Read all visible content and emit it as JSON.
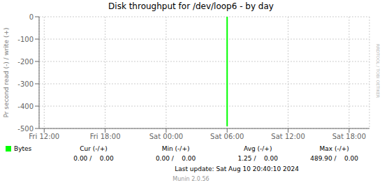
{
  "chart_data": {
    "type": "line",
    "title": "Disk throughput for /dev/loop6 - by day",
    "ylabel": "Pr second read (-) / write (+)",
    "x": [
      18,
      18
    ],
    "series": [
      {
        "name": "Bytes",
        "color": "#00ff00",
        "values": [
          0,
          -490
        ]
      }
    ],
    "xlim": [
      -0.5,
      32
    ],
    "xticks": [
      {
        "value": 0,
        "label": "Fri 12:00"
      },
      {
        "value": 6,
        "label": "Fri 18:00"
      },
      {
        "value": 12,
        "label": "Sat 00:00"
      },
      {
        "value": 18,
        "label": "Sat 06:00"
      },
      {
        "value": 24,
        "label": "Sat 12:00"
      },
      {
        "value": 30,
        "label": "Sat 18:00"
      }
    ],
    "ylim": [
      -500,
      0
    ],
    "yticks": [
      0,
      -100,
      -200,
      -300,
      -400,
      -500
    ],
    "grid": true,
    "legend": "bottom",
    "annotations": [
      "Cur (-/+)",
      "0.00 /    0.00",
      "Min (-/+)",
      "0.00 /    0.00",
      "Avg (-/+)",
      "1.25 /    0.00",
      "Max (-/+)",
      "489.90 /    0.00",
      "Last update: Sat Aug 10 20:40:10 2024",
      "Munin 2.0.56",
      "RRDTOOL / TOBI OETIKER"
    ]
  }
}
